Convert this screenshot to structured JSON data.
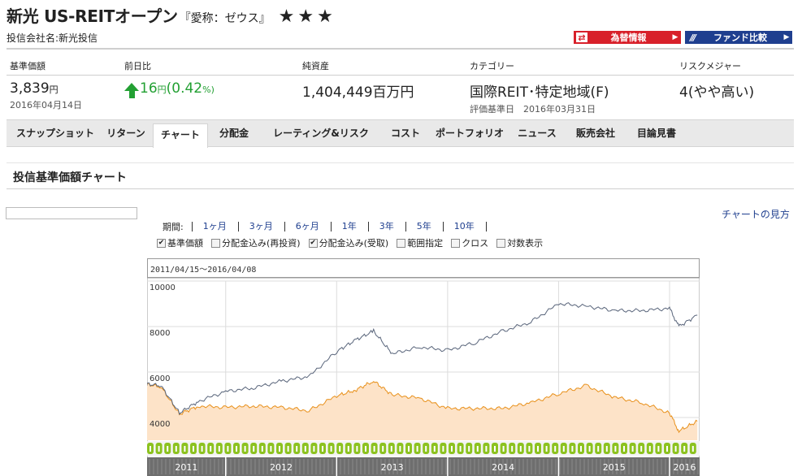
{
  "fund": {
    "name": "新光 US-REITオープン",
    "nickname": "『愛称：ゼウス』",
    "stars": "★★★",
    "company": "投信会社名:新光投信"
  },
  "buttons": {
    "fx": "為替情報",
    "compare": "ファンド比較"
  },
  "stats": {
    "nav": {
      "head": "基準価額",
      "value": "3,839",
      "unit": "円",
      "date": "2016年04月14日"
    },
    "change": {
      "head": "前日比",
      "value": "16",
      "unit": "円",
      "pct": "(0.42",
      "pct_unit": "%)"
    },
    "assets": {
      "head": "純資産",
      "value": "1,404,449",
      "unit": "百万円"
    },
    "category": {
      "head": "カテゴリー",
      "value": "国際REIT･特定地域(F)",
      "sub": "評価基準日　2016年03月31日"
    },
    "risk": {
      "head": "リスクメジャー",
      "value": "4(やや高い)"
    }
  },
  "tabs": [
    {
      "label": "スナップショット"
    },
    {
      "label": "リターン"
    },
    {
      "label": "チャート"
    },
    {
      "label": "分配金"
    },
    {
      "label": "レーティング&リスク"
    },
    {
      "label": "コスト"
    },
    {
      "label": "ポートフォリオ"
    },
    {
      "label": "ニュース"
    },
    {
      "label": "販売会社"
    },
    {
      "label": "目論見書"
    }
  ],
  "section": {
    "title": "投信基準価額チャート"
  },
  "howto": "チャートの見方",
  "period": {
    "label": "期間:",
    "options": [
      "1ヶ月",
      "3ヶ月",
      "6ヶ月",
      "1年",
      "3年",
      "5年",
      "10年"
    ]
  },
  "checks": [
    {
      "label": "基準価額",
      "checked": true
    },
    {
      "label": "分配金込み(再投資)",
      "checked": false
    },
    {
      "label": "分配金込み(受取)",
      "checked": true
    },
    {
      "label": "範囲指定",
      "checked": false
    },
    {
      "label": "クロス",
      "checked": false
    },
    {
      "label": "対数表示",
      "checked": false
    }
  ],
  "range_text": "2011/04/15～2016/04/08",
  "colors": {
    "nav_line": "#e8901a",
    "nav_fill": "#fde3c8",
    "total_line": "#58647a",
    "dividend_marker": "#8cc21f",
    "year_band": "#6e6e6e"
  },
  "chart_data": {
    "type": "area",
    "title": "",
    "xlabel": "",
    "ylabel": "",
    "ylim": [
      3000,
      10000
    ],
    "yticks": [
      4000,
      6000,
      8000,
      10000
    ],
    "year_labels": [
      "2011",
      "2012",
      "2013",
      "2014",
      "2015",
      "2016"
    ],
    "x": [
      "2011-04",
      "2011-06",
      "2011-08",
      "2011-10",
      "2012-01",
      "2012-04",
      "2012-07",
      "2012-10",
      "2013-01",
      "2013-03",
      "2013-05",
      "2013-07",
      "2013-10",
      "2014-01",
      "2014-04",
      "2014-07",
      "2014-10",
      "2015-01",
      "2015-04",
      "2015-07",
      "2015-10",
      "2016-01",
      "2016-02",
      "2016-04"
    ],
    "series": [
      {
        "values": [
          5500,
          5350,
          4150,
          4500,
          4450,
          4500,
          4450,
          4300,
          4950,
          5200,
          5600,
          5000,
          4850,
          4400,
          4400,
          4400,
          4650,
          5050,
          5400,
          4900,
          4650,
          4200,
          3400,
          3840
        ]
      },
      {
        "values": [
          5500,
          5400,
          4200,
          4700,
          5150,
          5300,
          5600,
          5800,
          6900,
          7400,
          7800,
          6800,
          7100,
          6950,
          7300,
          7800,
          8200,
          9000,
          8900,
          8700,
          8700,
          8800,
          8000,
          8500
        ]
      }
    ]
  }
}
